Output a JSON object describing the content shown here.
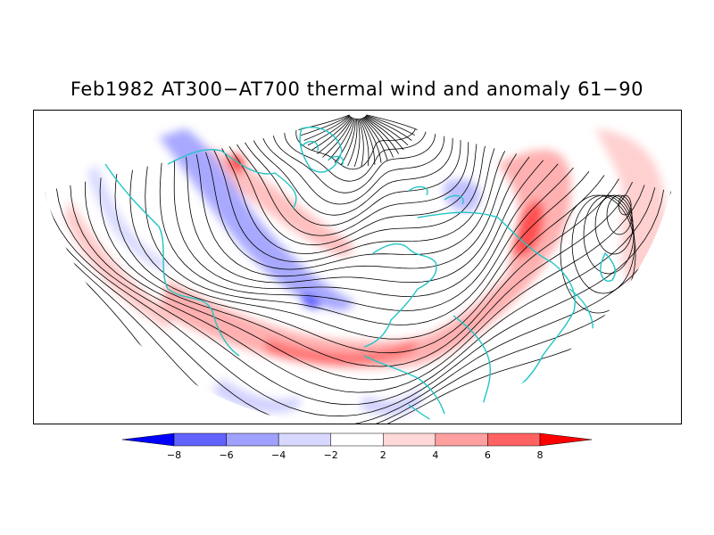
{
  "title": "Feb1982 AT300−AT700 thermal wind and anomaly 61−90",
  "map": {
    "projection": "north-polar-stereographic",
    "fields": [
      "thermal wind streamlines",
      "anomaly shading"
    ],
    "coastline_color": "#22c4c4",
    "streamline_color": "#000000"
  },
  "colorbar": {
    "levels": [
      -8,
      -6,
      -4,
      -2,
      2,
      4,
      6,
      8
    ],
    "tick_labels": [
      "−8",
      "−6",
      "−4",
      "−2",
      "2",
      "4",
      "6",
      "8"
    ],
    "colors": [
      "#0000ff",
      "#6262ff",
      "#a0a0ff",
      "#d8d8ff",
      "#ffffff",
      "#ffd8d8",
      "#ffa0a0",
      "#ff6262",
      "#ff0000"
    ]
  }
}
